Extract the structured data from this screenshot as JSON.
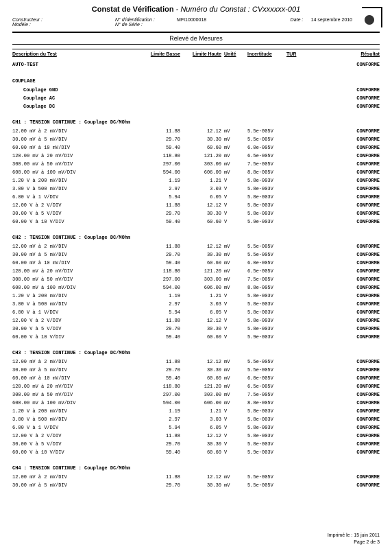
{
  "title_main": "Constat de Vérification",
  "title_sep": " - ",
  "title_sub_label": "Numéro du Constat : ",
  "title_sub_value": "CVxxxxxx-001",
  "header": {
    "constructeur_label": "Constructeur :",
    "identification_label": "N° d'identification :",
    "identification_value": "MFI10000018",
    "date_label": "Date :",
    "date_value": "14 septembre 2010",
    "modele_label": "Modèle :",
    "serie_label": "N° de Série :"
  },
  "banner": "Relevé de Mesures",
  "columns": {
    "desc": "Description du Test",
    "lb": "Limite Basse",
    "lh": "Limite Haute",
    "un": "Unité",
    "inc": "Incertitude",
    "tur": "TUR",
    "res": "Résultat"
  },
  "autotest": {
    "label": "AUTO-TEST",
    "res": "CONFORME"
  },
  "couplage": {
    "head": "COUPLAGE",
    "items": [
      {
        "label": "Couplage GND",
        "res": "CONFORME"
      },
      {
        "label": "Couplage AC",
        "res": "CONFORME"
      },
      {
        "label": "Couplage DC",
        "res": "CONFORME"
      }
    ]
  },
  "channels": [
    {
      "head": "CH1 : TENSION CONTINUE : Couplage DC/MOhm",
      "rows": [
        {
          "desc": "12.00 mV à 2 mV/DIV",
          "lb": "11.88",
          "lh": "12.12",
          "un": "mV",
          "inc": "5.5e-005V",
          "res": "CONFORME"
        },
        {
          "desc": "30.00 mV à 5 mV/DIV",
          "lb": "29.70",
          "lh": "30.30",
          "un": "mV",
          "inc": "5.5e-005V",
          "res": "CONFORME"
        },
        {
          "desc": "60.00 mV à 10 mV/DIV",
          "lb": "59.40",
          "lh": "60.60",
          "un": "mV",
          "inc": "6.0e-005V",
          "res": "CONFORME"
        },
        {
          "desc": "120.00 mV à 20 mV/DIV",
          "lb": "118.80",
          "lh": "121.20",
          "un": "mV",
          "inc": "6.5e-005V",
          "res": "CONFORME"
        },
        {
          "desc": "300.00 mV à 50 mV/DIV",
          "lb": "297.00",
          "lh": "303.00",
          "un": "mV",
          "inc": "7.5e-005V",
          "res": "CONFORME"
        },
        {
          "desc": "600.00 mV à 100 mV/DIV",
          "lb": "594.00",
          "lh": "606.00",
          "un": "mV",
          "inc": "8.8e-005V",
          "res": "CONFORME"
        },
        {
          "desc": "1.20 V à 200 mV/DIV",
          "lb": "1.19",
          "lh": "1.21",
          "un": "V",
          "inc": "5.8e-003V",
          "res": "CONFORME"
        },
        {
          "desc": "3.00 V à 500 mV/DIV",
          "lb": "2.97",
          "lh": "3.03",
          "un": "V",
          "inc": "5.8e-003V",
          "res": "CONFORME"
        },
        {
          "desc": "6.00 V à 1 V/DIV",
          "lb": "5.94",
          "lh": "6.05",
          "un": "V",
          "inc": "5.8e-003V",
          "res": "CONFORME"
        },
        {
          "desc": "12.00 V à 2 V/DIV",
          "lb": "11.88",
          "lh": "12.12",
          "un": "V",
          "inc": "5.8e-003V",
          "res": "CONFORME"
        },
        {
          "desc": "30.00 V à 5 V/DIV",
          "lb": "29.70",
          "lh": "30.30",
          "un": "V",
          "inc": "5.8e-003V",
          "res": "CONFORME"
        },
        {
          "desc": "60.00 V à 10 V/DIV",
          "lb": "59.40",
          "lh": "60.60",
          "un": "V",
          "inc": "5.9e-003V",
          "res": "CONFORME"
        }
      ]
    },
    {
      "head": "CH2 : TENSION CONTINUE : Couplage DC/MOhm",
      "rows": [
        {
          "desc": "12.00 mV à 2 mV/DIV",
          "lb": "11.88",
          "lh": "12.12",
          "un": "mV",
          "inc": "5.5e-005V",
          "res": "CONFORME"
        },
        {
          "desc": "30.00 mV à 5 mV/DIV",
          "lb": "29.70",
          "lh": "30.30",
          "un": "mV",
          "inc": "5.5e-005V",
          "res": "CONFORME"
        },
        {
          "desc": "60.00 mV à 10 mV/DIV",
          "lb": "59.40",
          "lh": "60.60",
          "un": "mV",
          "inc": "6.0e-005V",
          "res": "CONFORME"
        },
        {
          "desc": "120.00 mV à 20 mV/DIV",
          "lb": "118.80",
          "lh": "121.20",
          "un": "mV",
          "inc": "6.5e-005V",
          "res": "CONFORME"
        },
        {
          "desc": "300.00 mV à 50 mV/DIV",
          "lb": "297.00",
          "lh": "303.00",
          "un": "mV",
          "inc": "7.5e-005V",
          "res": "CONFORME"
        },
        {
          "desc": "600.00 mV à 100 mV/DIV",
          "lb": "594.00",
          "lh": "606.00",
          "un": "mV",
          "inc": "8.8e-005V",
          "res": "CONFORME"
        },
        {
          "desc": "1.20 V à 200 mV/DIV",
          "lb": "1.19",
          "lh": "1.21",
          "un": "V",
          "inc": "5.8e-003V",
          "res": "CONFORME"
        },
        {
          "desc": "3.00 V à 500 mV/DIV",
          "lb": "2.97",
          "lh": "3.03",
          "un": "V",
          "inc": "5.8e-003V",
          "res": "CONFORME"
        },
        {
          "desc": "6.00 V à 1 V/DIV",
          "lb": "5.94",
          "lh": "6.05",
          "un": "V",
          "inc": "5.8e-003V",
          "res": "CONFORME"
        },
        {
          "desc": "12.00 V à 2 V/DIV",
          "lb": "11.88",
          "lh": "12.12",
          "un": "V",
          "inc": "5.8e-003V",
          "res": "CONFORME"
        },
        {
          "desc": "30.00 V à 5 V/DIV",
          "lb": "29.70",
          "lh": "30.30",
          "un": "V",
          "inc": "5.8e-003V",
          "res": "CONFORME"
        },
        {
          "desc": "60.00 V à 10 V/DIV",
          "lb": "59.40",
          "lh": "60.60",
          "un": "V",
          "inc": "5.9e-003V",
          "res": "CONFORME"
        }
      ]
    },
    {
      "head": "CH3 : TENSION CONTINUE : Couplage DC/MOhm",
      "rows": [
        {
          "desc": "12.00 mV à 2 mV/DIV",
          "lb": "11.88",
          "lh": "12.12",
          "un": "mV",
          "inc": "5.5e-005V",
          "res": "CONFORME"
        },
        {
          "desc": "30.00 mV à 5 mV/DIV",
          "lb": "29.70",
          "lh": "30.30",
          "un": "mV",
          "inc": "5.5e-005V",
          "res": "CONFORME"
        },
        {
          "desc": "60.00 mV à 10 mV/DIV",
          "lb": "59.40",
          "lh": "60.60",
          "un": "mV",
          "inc": "6.0e-005V",
          "res": "CONFORME"
        },
        {
          "desc": "120.00 mV à 20 mV/DIV",
          "lb": "118.80",
          "lh": "121.20",
          "un": "mV",
          "inc": "6.5e-005V",
          "res": "CONFORME"
        },
        {
          "desc": "300.00 mV à 50 mV/DIV",
          "lb": "297.00",
          "lh": "303.00",
          "un": "mV",
          "inc": "7.5e-005V",
          "res": "CONFORME"
        },
        {
          "desc": "600.00 mV à 100 mV/DIV",
          "lb": "594.00",
          "lh": "606.00",
          "un": "mV",
          "inc": "8.8e-005V",
          "res": "CONFORME"
        },
        {
          "desc": "1.20 V à 200 mV/DIV",
          "lb": "1.19",
          "lh": "1.21",
          "un": "V",
          "inc": "5.8e-003V",
          "res": "CONFORME"
        },
        {
          "desc": "3.00 V à 500 mV/DIV",
          "lb": "2.97",
          "lh": "3.03",
          "un": "V",
          "inc": "5.8e-003V",
          "res": "CONFORME"
        },
        {
          "desc": "6.00 V à 1 V/DIV",
          "lb": "5.94",
          "lh": "6.05",
          "un": "V",
          "inc": "5.8e-003V",
          "res": "CONFORME"
        },
        {
          "desc": "12.00 V à 2 V/DIV",
          "lb": "11.88",
          "lh": "12.12",
          "un": "V",
          "inc": "5.8e-003V",
          "res": "CONFORME"
        },
        {
          "desc": "30.00 V à 5 V/DIV",
          "lb": "29.70",
          "lh": "30.30",
          "un": "V",
          "inc": "5.8e-003V",
          "res": "CONFORME"
        },
        {
          "desc": "60.00 V à 10 V/DIV",
          "lb": "59.40",
          "lh": "60.60",
          "un": "V",
          "inc": "5.9e-003V",
          "res": "CONFORME"
        }
      ]
    },
    {
      "head": "CH4 : TENSION CONTINUE : Couplage DC/MOhm",
      "rows": [
        {
          "desc": "12.00 mV à 2 mV/DIV",
          "lb": "11.88",
          "lh": "12.12",
          "un": "mV",
          "inc": "5.5e-005V",
          "res": "CONFORME"
        },
        {
          "desc": "30.00 mV à 5 mV/DIV",
          "lb": "29.70",
          "lh": "30.30",
          "un": "mV",
          "inc": "5.5e-005V",
          "res": "CONFORME"
        }
      ]
    }
  ],
  "footer": {
    "printed": "Imprimé le : 15 juin 2011",
    "page": "Page 2 de 3"
  }
}
